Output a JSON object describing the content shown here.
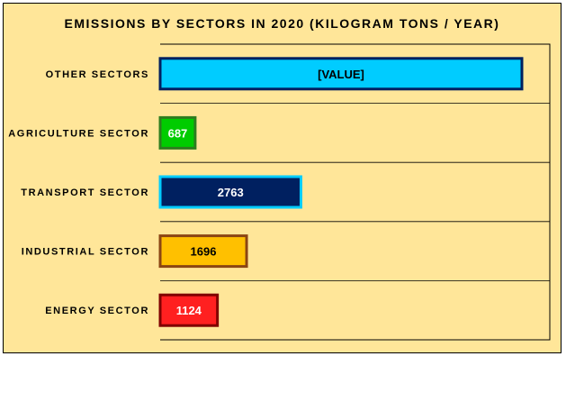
{
  "chart_data": {
    "type": "bar",
    "orientation": "horizontal",
    "title": "EMISSIONS BY SECTORS IN 2020 (KILOGRAM TONS / YEAR)",
    "xlabel": "",
    "ylabel": "",
    "xlim": [
      0,
      7100
    ],
    "grid": true,
    "legend": "none",
    "categories": [
      "OTHER SECTORS",
      "AGRICULTURE SECTOR",
      "TRANSPORT SECTOR",
      "INDUSTRIAL SECTOR",
      "ENERGY SECTOR"
    ],
    "values": [
      7100,
      687,
      2763,
      1696,
      1124
    ],
    "data_labels": [
      "[VALUE]",
      "687",
      "2763",
      "1696",
      "1124"
    ],
    "bar_fill_colors": [
      "#00CCFF",
      "#00CC00",
      "#002060",
      "#FFC000",
      "#FF2020"
    ],
    "bar_border_colors": [
      "#002060",
      "#2E7D1F",
      "#00CCFF",
      "#8B4513",
      "#800000"
    ],
    "label_colors": [
      "#000000",
      "#FFFFFF",
      "#FFFFFF",
      "#000000",
      "#FFFFFF"
    ],
    "background_color": "#FFE699"
  }
}
